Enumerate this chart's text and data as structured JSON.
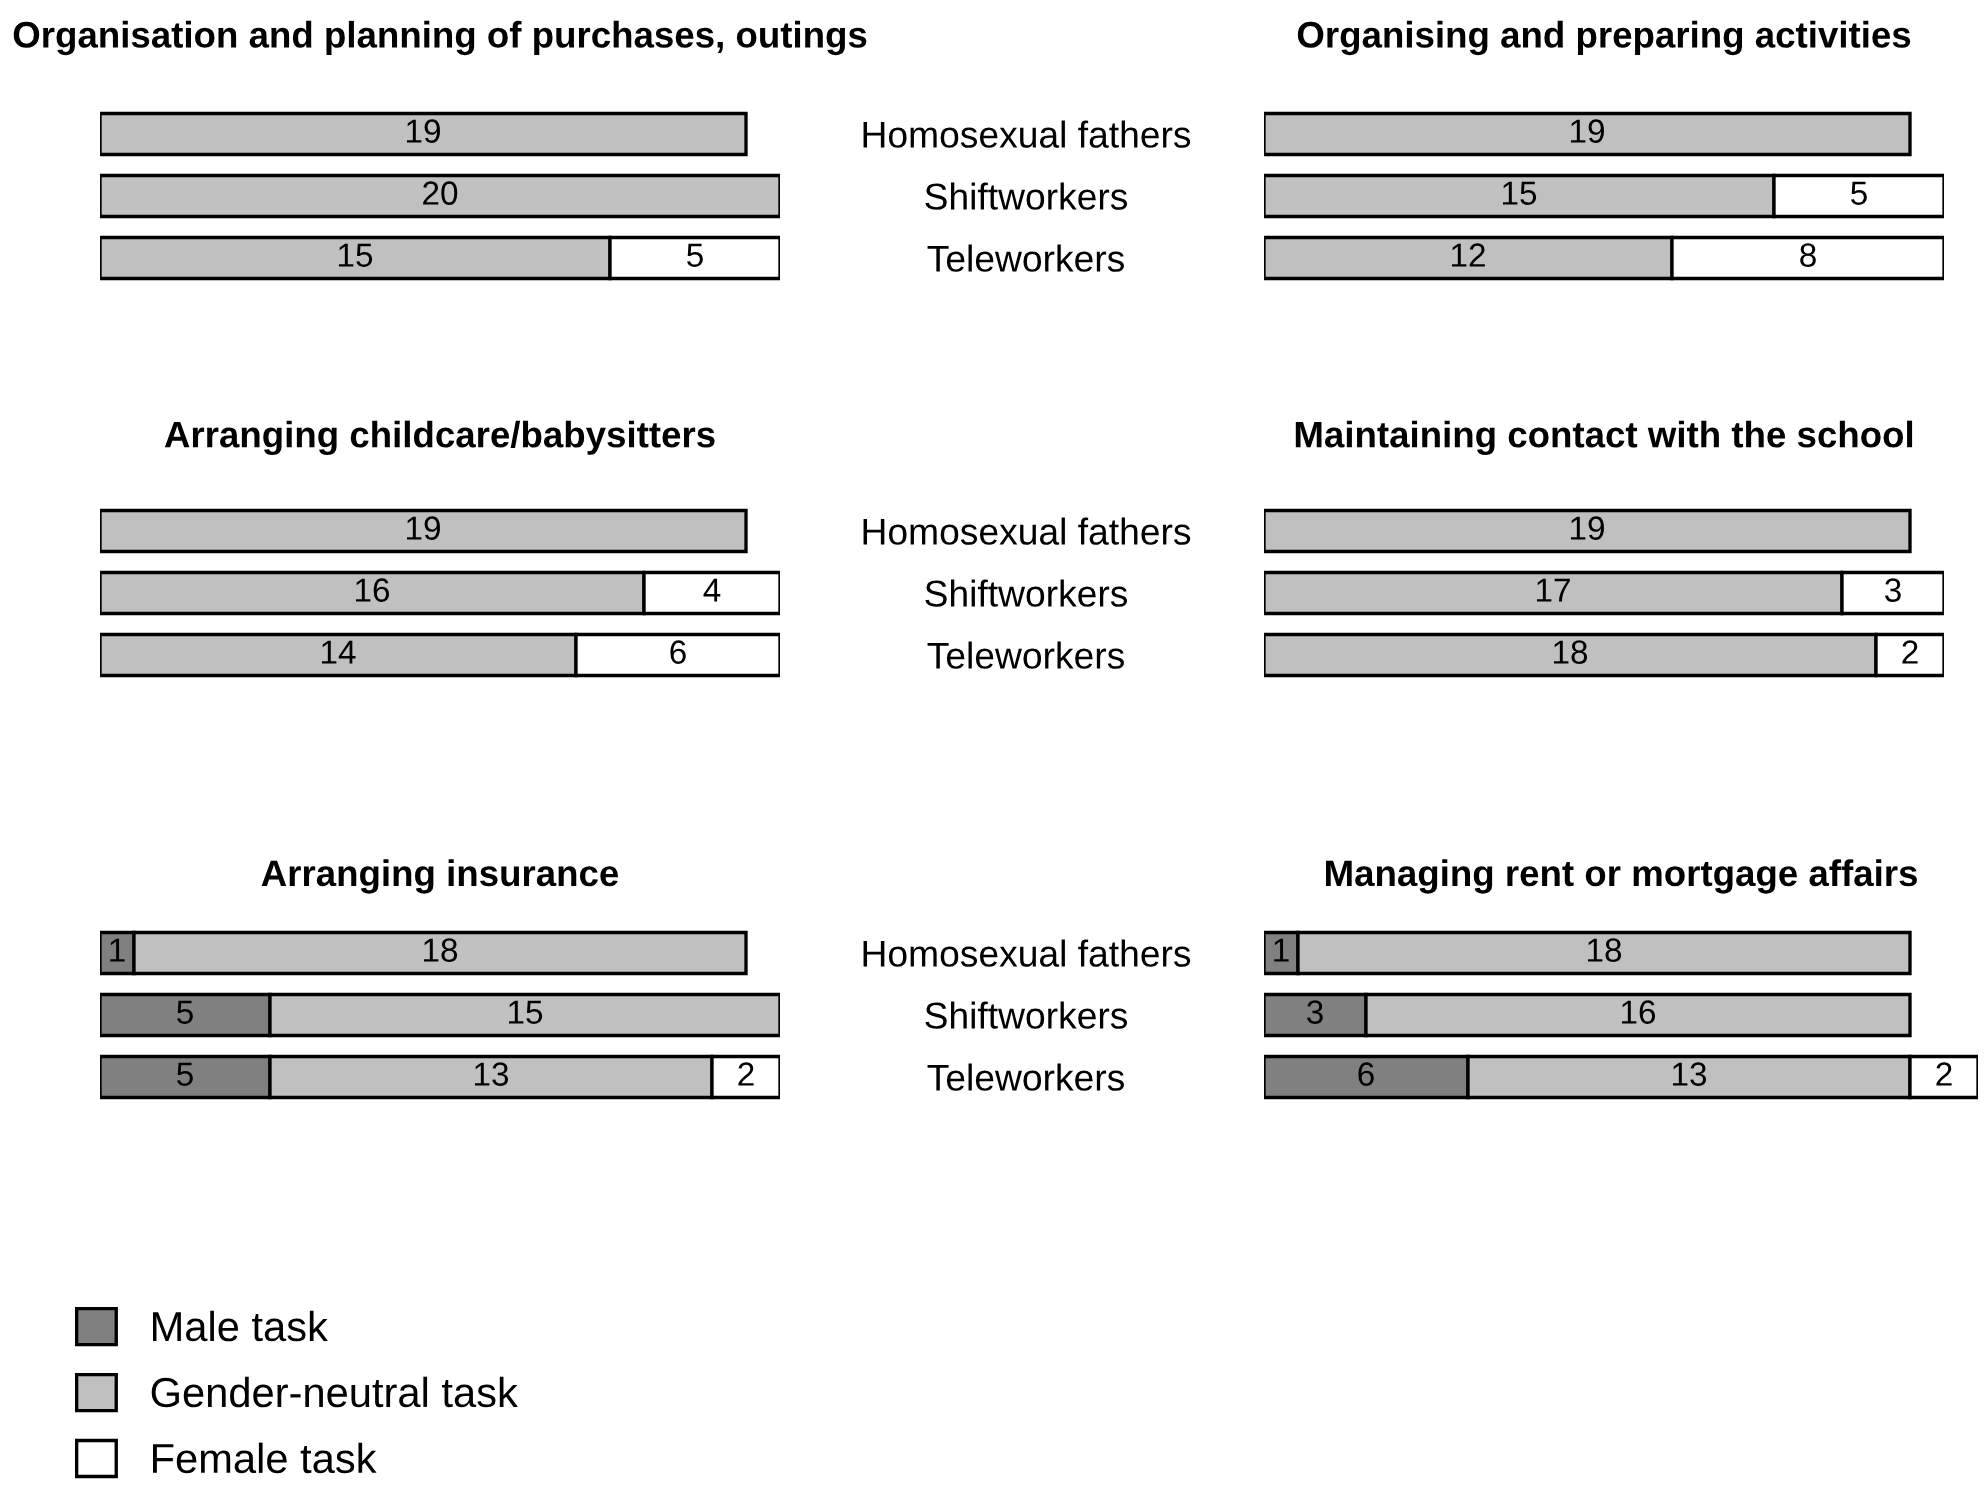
{
  "chart_data": [
    {
      "type": "bar",
      "orientation": "horizontal",
      "stacked": true,
      "data_labels": true,
      "title": "Organisation and planning of purchases, outings",
      "categories": [
        "Homosexual fathers",
        "Shiftworkers",
        "Teleworkers"
      ],
      "xlim": [
        0,
        20
      ],
      "tick_labels": false,
      "series": [
        {
          "color": "#c0c0c0",
          "values": [
            19,
            20,
            15
          ]
        },
        {
          "color": "#ffffff",
          "values": [
            null,
            null,
            5
          ]
        }
      ]
    },
    {
      "type": "bar",
      "orientation": "horizontal",
      "stacked": true,
      "data_labels": true,
      "title": "Organising and preparing activities",
      "categories": [
        "Homosexual fathers",
        "Shiftworkers",
        "Teleworkers"
      ],
      "xlim": [
        0,
        20
      ],
      "tick_labels": "y",
      "series": [
        {
          "color": "#c0c0c0",
          "values": [
            19,
            15,
            12
          ]
        },
        {
          "color": "#ffffff",
          "values": [
            null,
            5,
            8
          ]
        }
      ]
    },
    {
      "type": "bar",
      "orientation": "horizontal",
      "stacked": true,
      "data_labels": true,
      "title": "Arranging childcare/babysitters",
      "categories": [
        "Homosexual fathers",
        "Shiftworkers",
        "Teleworkers"
      ],
      "xlim": [
        0,
        20
      ],
      "tick_labels": false,
      "series": [
        {
          "color": "#c0c0c0",
          "values": [
            19,
            16,
            14
          ]
        },
        {
          "color": "#ffffff",
          "values": [
            null,
            4,
            6
          ]
        }
      ]
    },
    {
      "type": "bar",
      "orientation": "horizontal",
      "stacked": true,
      "data_labels": true,
      "title": "Maintaining contact with the school",
      "categories": [
        "Homosexual fathers",
        "Shiftworkers",
        "Teleworkers"
      ],
      "xlim": [
        0,
        20
      ],
      "tick_labels": "y",
      "series": [
        {
          "color": "#c0c0c0",
          "values": [
            19,
            17,
            18
          ]
        },
        {
          "color": "#ffffff",
          "values": [
            null,
            3,
            2
          ]
        }
      ]
    },
    {
      "type": "bar",
      "orientation": "horizontal",
      "stacked": true,
      "data_labels": true,
      "title": "Arranging insurance",
      "categories": [
        "Homosexual fathers",
        "Shiftworkers",
        "Teleworkers"
      ],
      "xlim": [
        0,
        20
      ],
      "tick_labels": false,
      "legend": "bottom left",
      "series": [
        {
          "name": "Male task",
          "color": "#808080",
          "values": [
            1,
            5,
            5
          ]
        },
        {
          "name": "Gender-neutral task",
          "color": "#c0c0c0",
          "values": [
            18,
            15,
            13
          ]
        },
        {
          "name": "Female task",
          "color": "#ffffff",
          "values": [
            null,
            null,
            2
          ]
        }
      ]
    },
    {
      "type": "bar",
      "orientation": "horizontal",
      "stacked": true,
      "data_labels": true,
      "title": "Managing rent or mortgage affairs",
      "categories": [
        "Homosexual fathers",
        "Shiftworkers",
        "Teleworkers"
      ],
      "xlim": [
        0,
        21
      ],
      "tick_labels": "y",
      "series": [
        {
          "name": "Male task",
          "color": "#808080",
          "values": [
            1,
            3,
            6
          ]
        },
        {
          "name": "Gender-neutral task",
          "color": "#c0c0c0",
          "values": [
            18,
            16,
            13
          ]
        },
        {
          "name": "Female task",
          "color": "#ffffff",
          "values": [
            null,
            null,
            2
          ]
        }
      ]
    }
  ]
}
